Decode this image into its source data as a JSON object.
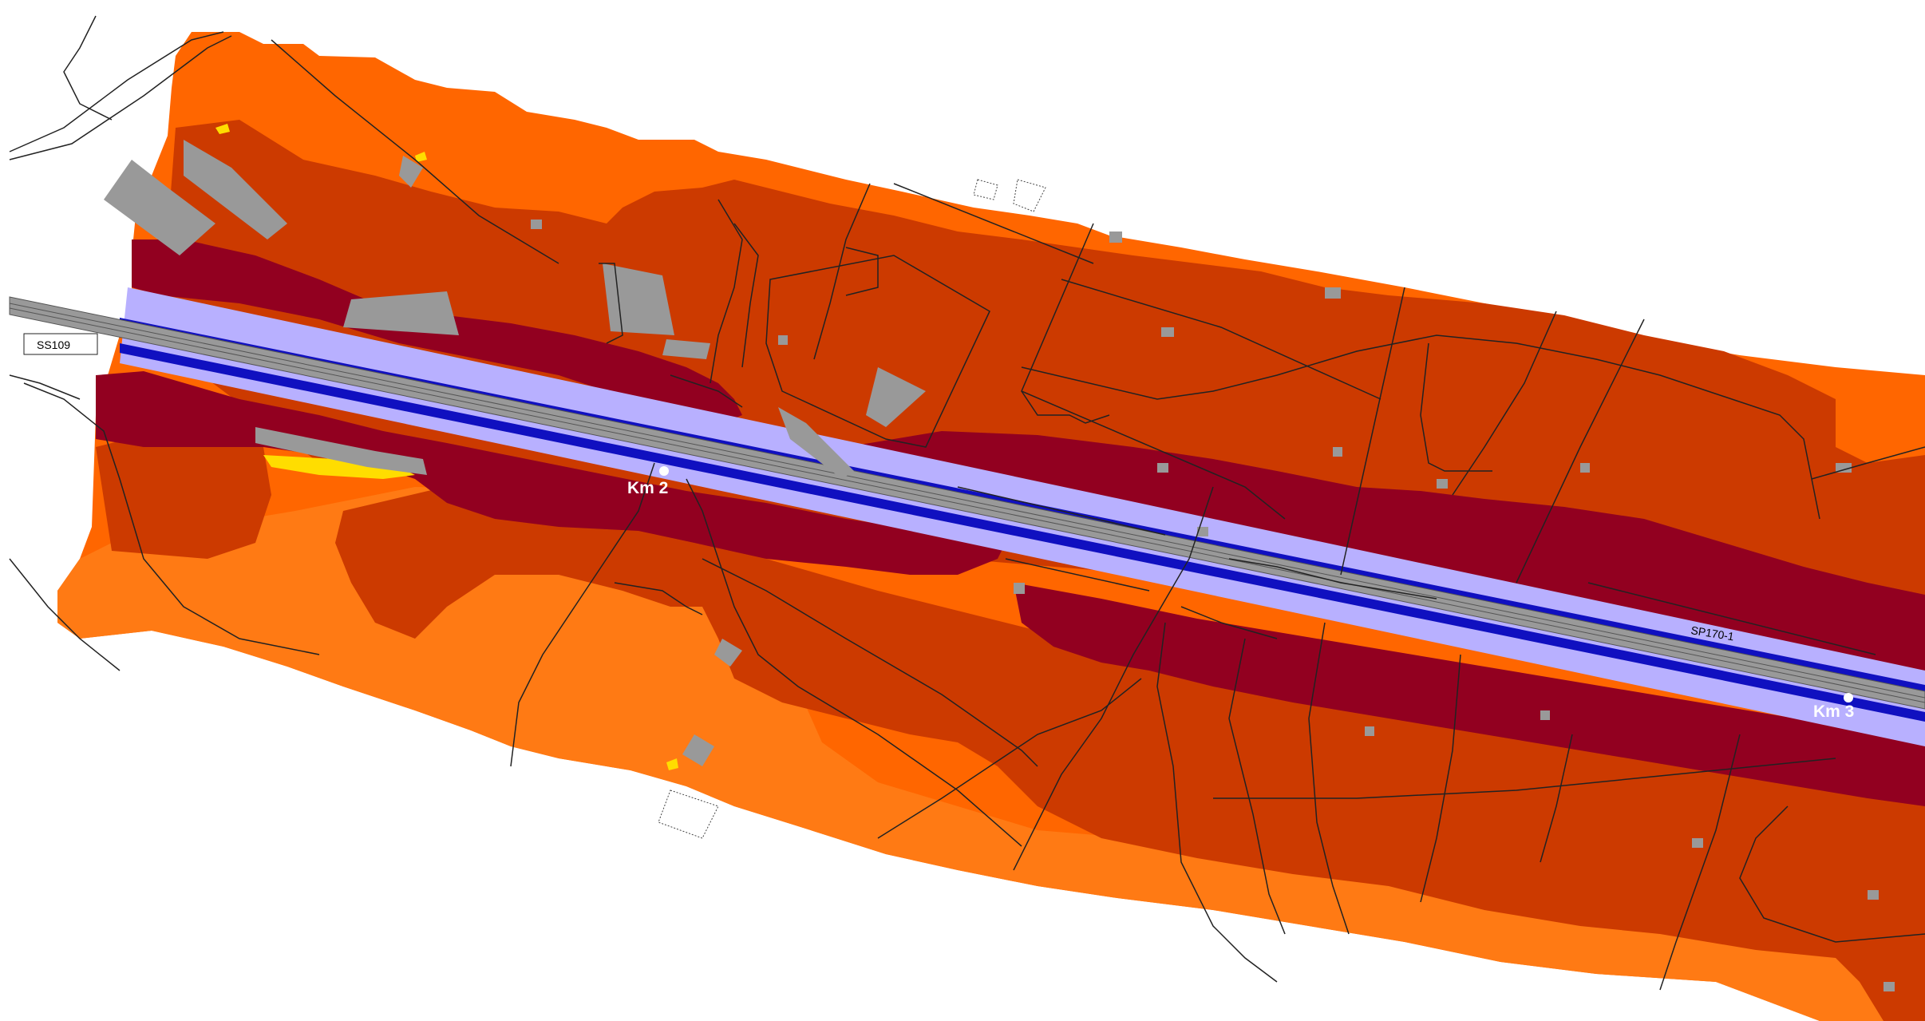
{
  "colors": {
    "background": "#ffffff",
    "zone_outer": "#ff6600",
    "zone_mid": "#cc3a00",
    "zone_inner": "#920020",
    "yellow": "#ffdd00",
    "band_light": "#b8b0ff",
    "band_dark": "#1010c0",
    "rail": "#999999",
    "buildings": "#999999",
    "lines": "#222222"
  },
  "roads": {
    "ss109": "SS109",
    "sp170": "SP170-1"
  },
  "markers": {
    "km2": "Km 2",
    "km3": "Km 3"
  }
}
